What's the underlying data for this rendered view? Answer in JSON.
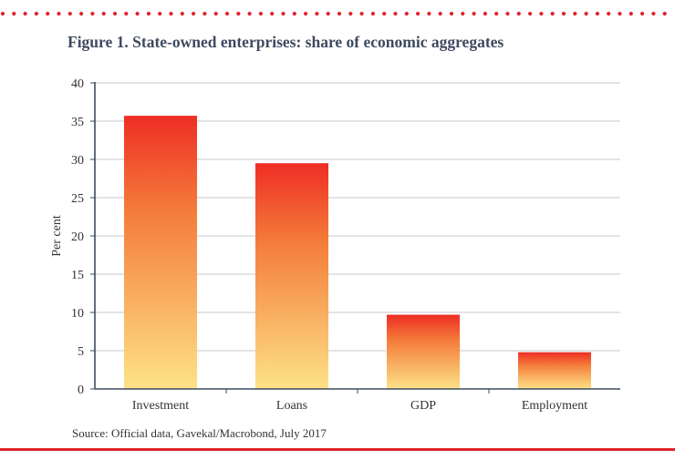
{
  "header": {
    "title": "Figure 1. State-owned enterprises: share of economic aggregates"
  },
  "footer": {
    "source": "Source: Official data, Gavekal/Macrobond, July 2017"
  },
  "colors": {
    "accent_red": "#e0242d",
    "bar_top": "#ee2e24",
    "bar_mid": "#f47c3a",
    "bar_bottom": "#fde287",
    "grid": "#c4c9cf",
    "axis": "#3d4a5f",
    "title_text": "#3d4a5f"
  },
  "chart_data": {
    "type": "bar",
    "title": "Figure 1. State-owned enterprises: share of economic aggregates",
    "categories": [
      "Investment",
      "Loans",
      "GDP",
      "Employment"
    ],
    "values": [
      35.7,
      29.5,
      9.7,
      4.8
    ],
    "xlabel": "",
    "ylabel": "Per cent",
    "ylim": [
      0,
      40
    ],
    "yticks": [
      0,
      5,
      10,
      15,
      20,
      25,
      30,
      35,
      40
    ],
    "grid": true,
    "legend": "none"
  }
}
